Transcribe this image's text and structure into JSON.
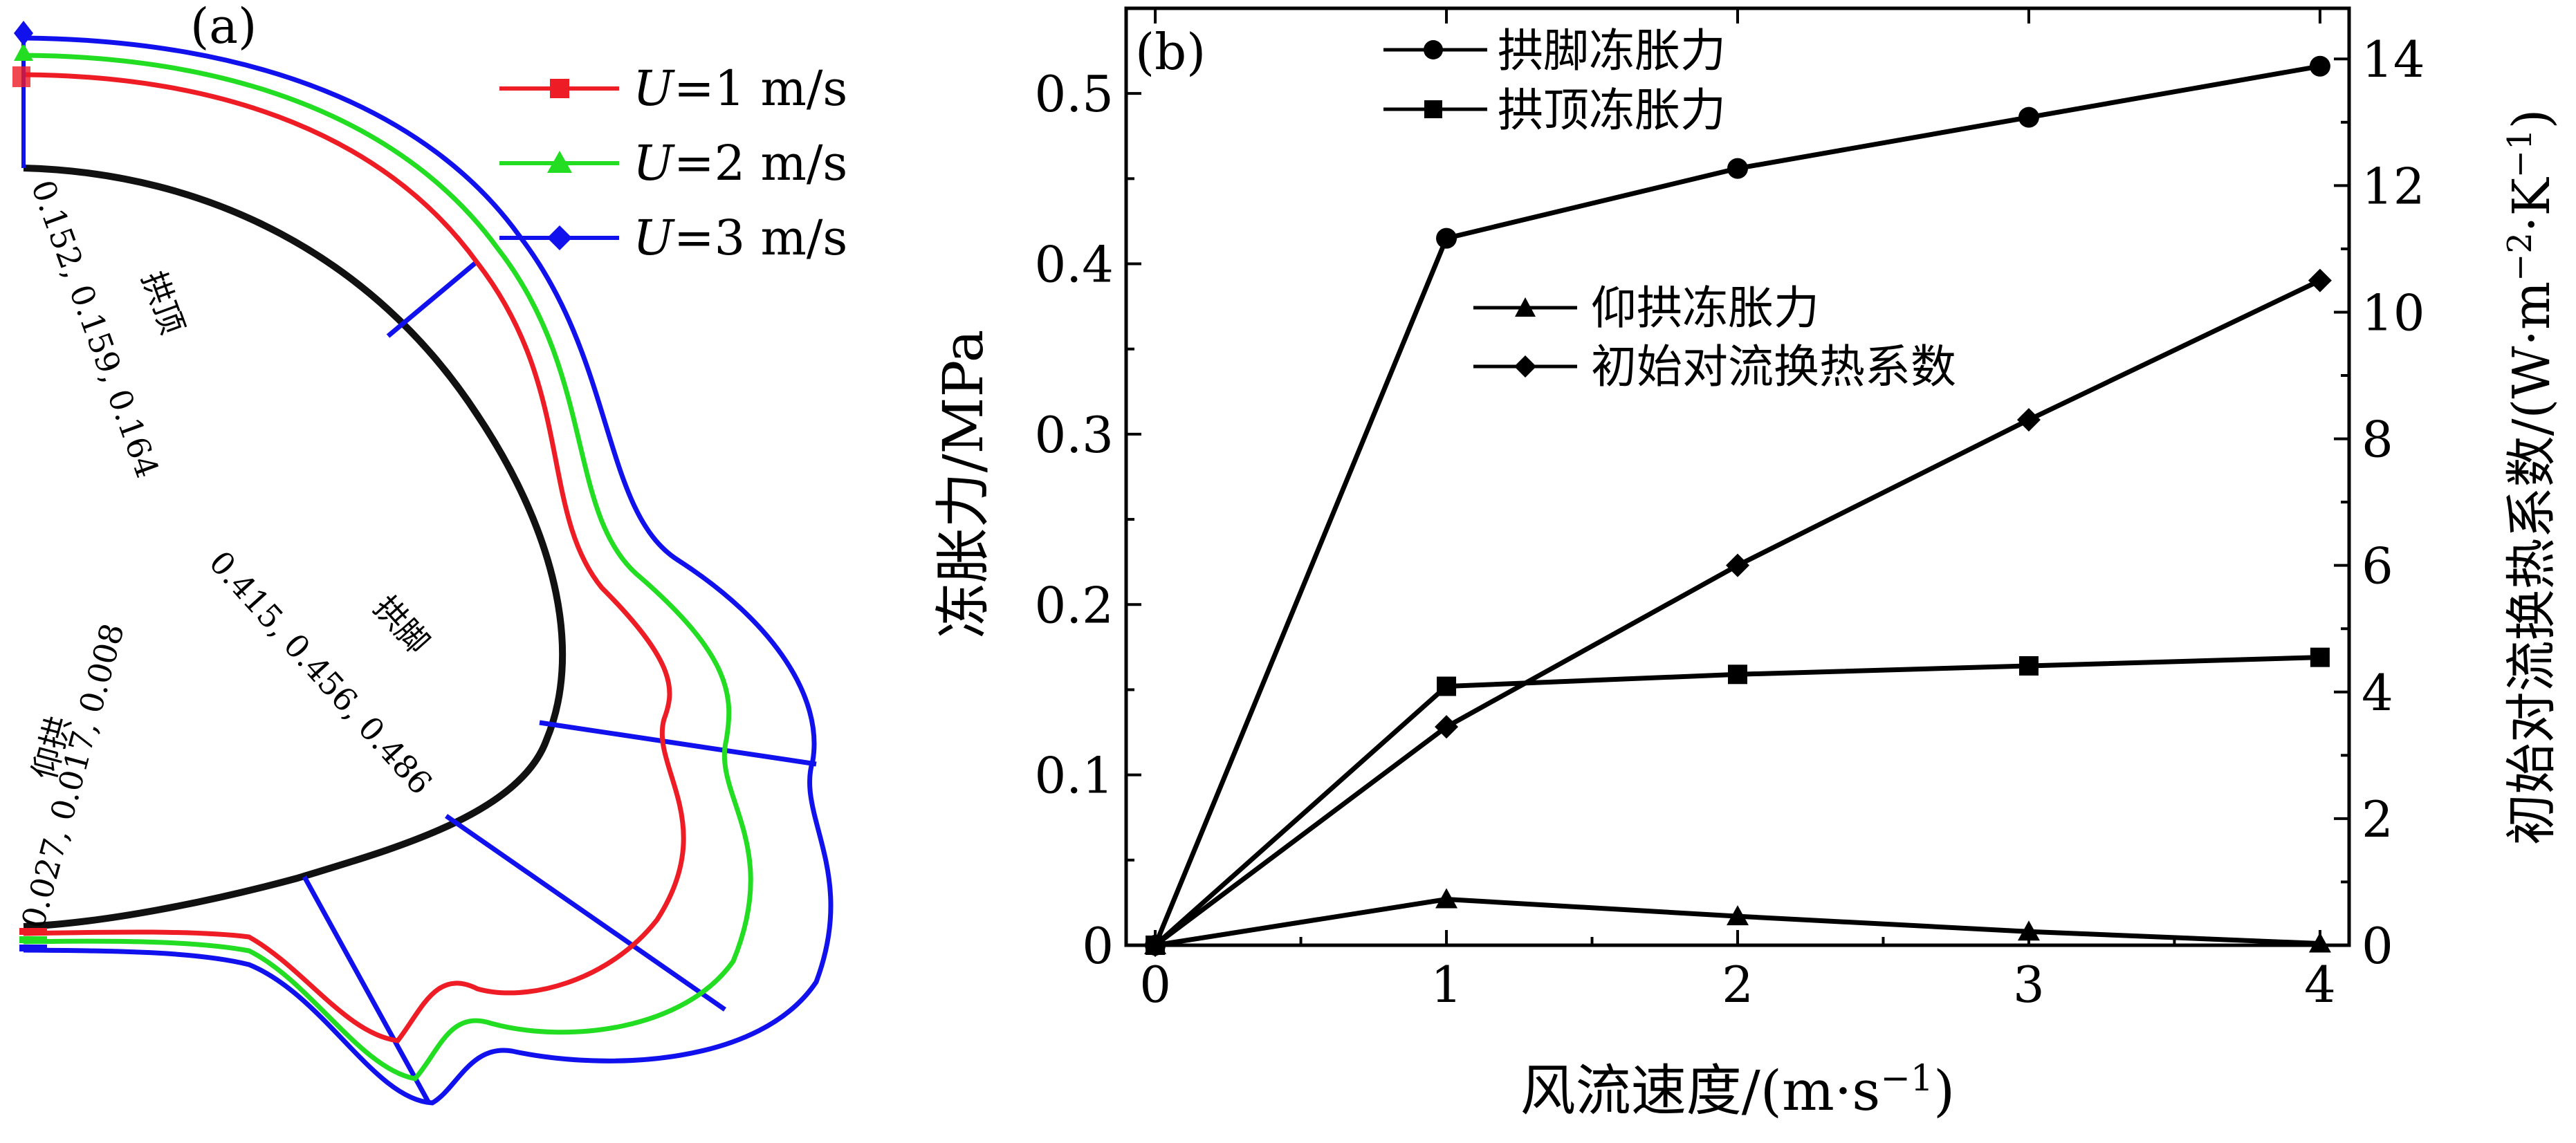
{
  "panels": {
    "a_label": "(a)",
    "b_label": "(b)"
  },
  "panel_a": {
    "legend": [
      {
        "prefix": "U",
        "value": "=1 m/s",
        "color": "#ee1c25",
        "marker": "square"
      },
      {
        "prefix": "U",
        "value": "=2 m/s",
        "color": "#22dd22",
        "marker": "triangle"
      },
      {
        "prefix": "U",
        "value": "=3 m/s",
        "color": "#1111ee",
        "marker": "diamond"
      }
    ],
    "sections": [
      {
        "name": "拱顶",
        "values": "0.152, 0.159, 0.164"
      },
      {
        "name": "拱脚",
        "values": "0.415, 0.456, 0.486"
      },
      {
        "name": "仰拱",
        "values": "0.027, 0.017, 0.008"
      }
    ],
    "guide_color": "#1111ee",
    "lining_color": "#000000"
  },
  "chart_data": {
    "type": "line",
    "x": [
      0,
      1,
      2,
      3,
      4
    ],
    "x_ticks": [
      "0",
      "1",
      "2",
      "3",
      "4"
    ],
    "xlabel": "风流速度/(m·s",
    "xlabel_sup": "−1",
    "xlabel_end": ")",
    "ylabel": "冻胀力/MPa",
    "y2label": "初始对流换热系数/(W·m",
    "y2label_sup1": "−2",
    "y2label_mid": "·K",
    "y2label_sup2": "−1",
    "y2label_end": ")",
    "xlim": [
      -0.1,
      4.1
    ],
    "ylim": [
      0,
      0.55
    ],
    "y2lim": [
      0,
      14.8
    ],
    "y_ticks": [
      "0",
      "0.1",
      "0.2",
      "0.3",
      "0.4",
      "0.5"
    ],
    "y2_ticks": [
      "0",
      "2",
      "4",
      "6",
      "8",
      "10",
      "12",
      "14"
    ],
    "series": [
      {
        "name": "拱脚冻胀力",
        "marker": "circle",
        "axis": "left",
        "values": [
          0,
          0.415,
          0.456,
          0.486,
          0.516
        ]
      },
      {
        "name": "拱顶冻胀力",
        "marker": "square",
        "axis": "left",
        "values": [
          0,
          0.152,
          0.159,
          0.164,
          0.169
        ]
      },
      {
        "name": "仰拱冻胀力",
        "marker": "triangle",
        "axis": "left",
        "values": [
          0,
          0.027,
          0.017,
          0.008,
          0.001
        ]
      },
      {
        "name": "初始对流换热系数",
        "marker": "diamond",
        "axis": "right",
        "values": [
          0,
          3.45,
          6.0,
          8.3,
          10.5
        ]
      }
    ]
  }
}
